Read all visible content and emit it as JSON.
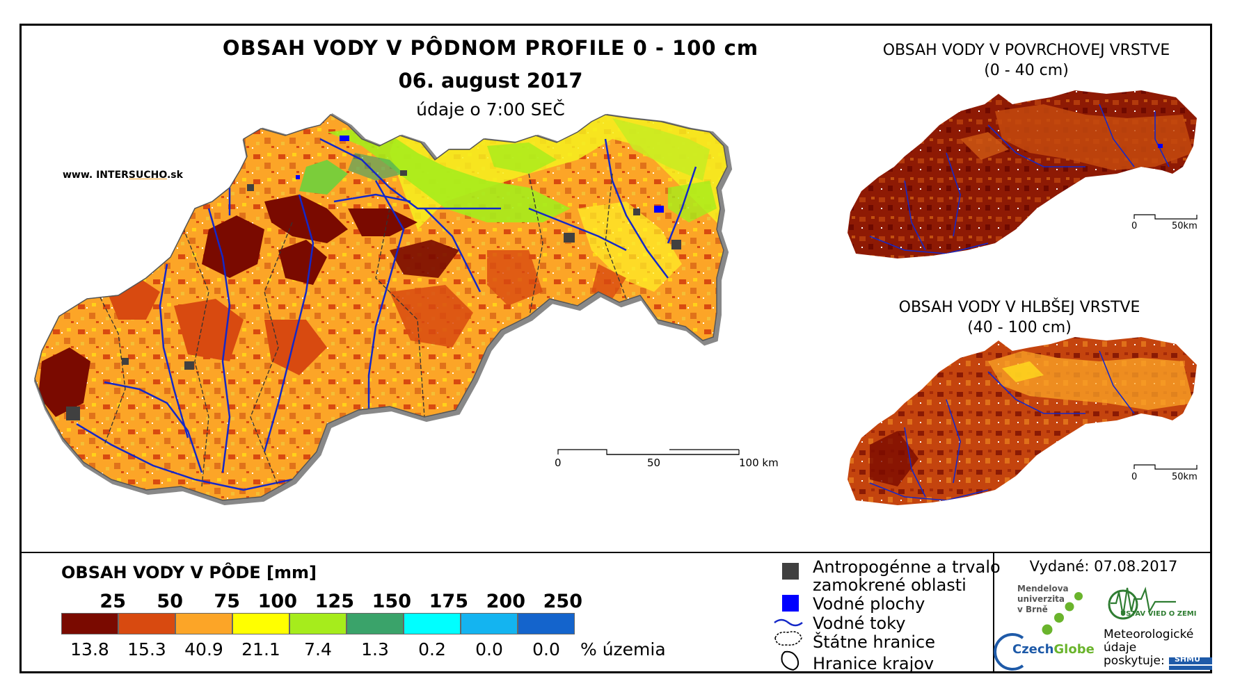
{
  "main": {
    "title": "OBSAH VODY V PÔDNOM PROFILE 0 - 100 cm",
    "date": "06. august 2017",
    "time": "údaje o 7:00 SEČ",
    "website_prefix": "www. INTER",
    "website_highlight": "SUCHO",
    "website_suffix": ".sk",
    "scale_labels": [
      "0",
      "50",
      "100 km"
    ]
  },
  "surface": {
    "title_line1": "OBSAH VODY V POVRCHOVEJ VRSTVE",
    "title_line2": "(0 - 40 cm)",
    "scale_labels": [
      "0",
      "50km"
    ]
  },
  "deep": {
    "title_line1": "OBSAH VODY V HLBŠEJ VRSTVE",
    "title_line2": "(40 - 100 cm)",
    "scale_labels": [
      "0",
      "50km"
    ]
  },
  "legend": {
    "title": "OBSAH VODY V PÔDE [mm]",
    "thresholds": [
      "25",
      "50",
      "75",
      "100",
      "125",
      "150",
      "175",
      "200",
      "250"
    ],
    "colors": [
      "#7a0a00",
      "#d84a10",
      "#fca527",
      "#ffff00",
      "#a6ec1c",
      "#3aa36a",
      "#00ffff",
      "#14b4f0",
      "#1464cc"
    ],
    "percentages": [
      "13.8",
      "15.3",
      "40.9",
      "21.1",
      "7.4",
      "1.3",
      "0.2",
      "0.0",
      "0.0"
    ],
    "unit": "% územia"
  },
  "layers": {
    "anthropogenic_line1": "Antropogénne a trvalo",
    "anthropogenic_line2": "zamokrené oblasti",
    "water_bodies": "Vodné plochy",
    "rivers": "Vodné toky",
    "state_border": "Štátne hranice",
    "region_border": "Hranice krajov"
  },
  "footer": {
    "issued": "Vydané: 07.08.2017",
    "mendel_line1": "Mendelova",
    "mendel_line2": "univerzita",
    "mendel_line3": "v Brně",
    "czechglobe_a": "Czech",
    "czechglobe_b": "Globe",
    "uvoz": "ÚSTAV VIED O ZEMI",
    "meteo_line1": "Meteorologické",
    "meteo_line2": "údaje",
    "meteo_line3": "poskytuje:",
    "shmu": "SHMÚ"
  },
  "colors": {
    "river": "#1428c8",
    "water_body": "#0000ff",
    "anthropogenic": "#404040",
    "czechglobe_blue": "#1e5aa8",
    "czechglobe_green": "#6ab42c",
    "uvoz_green": "#2f7d32"
  }
}
